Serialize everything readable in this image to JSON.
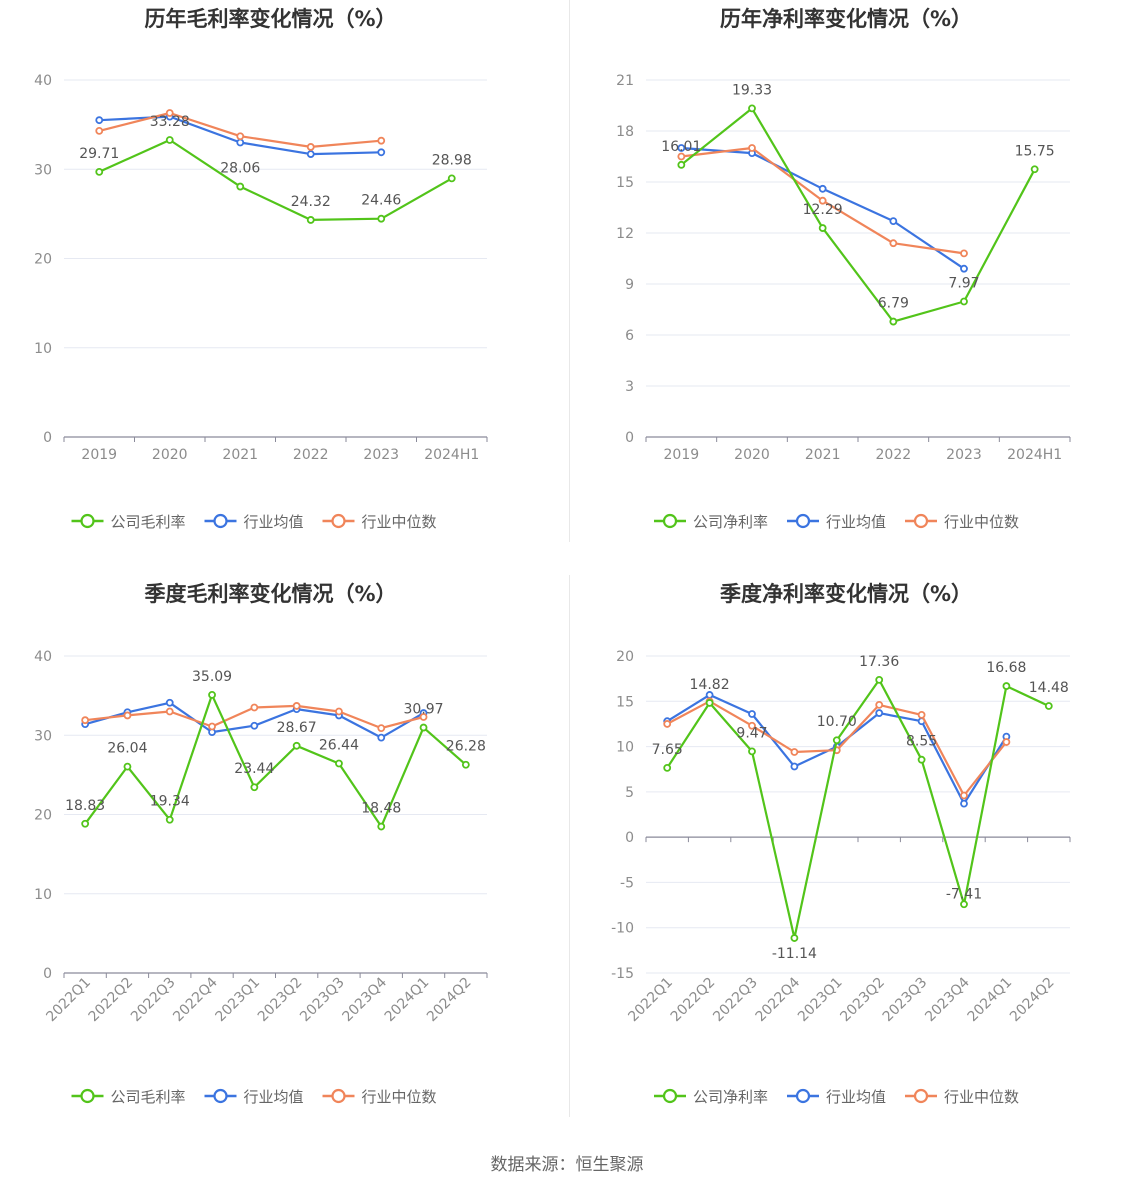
{
  "colors": {
    "company": "#52c41a",
    "industry_avg": "#3b74e0",
    "industry_median": "#f0855a",
    "grid": "#e6e9f2",
    "axis": "#8a8a9a"
  },
  "chart_data": [
    {
      "type": "line",
      "title": "历年毛利率变化情况（%）",
      "categories": [
        "2019",
        "2020",
        "2021",
        "2022",
        "2023",
        "2024H1"
      ],
      "ylim": [
        0,
        40
      ],
      "yticks": [
        0,
        10,
        20,
        30,
        40
      ],
      "rotate_x": false,
      "series": [
        {
          "name": "公司毛利率",
          "key": "company",
          "values": [
            29.71,
            33.28,
            28.06,
            24.32,
            24.46,
            28.98
          ],
          "labels": [
            "29.71",
            "33.28",
            "28.06",
            "24.32",
            "24.46",
            "28.98"
          ]
        },
        {
          "name": "行业均值",
          "key": "industry_avg",
          "values": [
            35.5,
            35.9,
            33.0,
            31.7,
            31.9,
            null
          ]
        },
        {
          "name": "行业中位数",
          "key": "industry_median",
          "values": [
            34.3,
            36.3,
            33.7,
            32.5,
            33.2,
            null
          ]
        }
      ],
      "legend": [
        "公司毛利率",
        "行业均值",
        "行业中位数"
      ]
    },
    {
      "type": "line",
      "title": "历年净利率变化情况（%）",
      "categories": [
        "2019",
        "2020",
        "2021",
        "2022",
        "2023",
        "2024H1"
      ],
      "ylim": [
        0,
        21
      ],
      "yticks": [
        0,
        3,
        6,
        9,
        12,
        15,
        18,
        21
      ],
      "rotate_x": false,
      "series": [
        {
          "name": "公司净利率",
          "key": "company",
          "values": [
            16.01,
            19.33,
            12.29,
            6.79,
            7.97,
            15.75
          ],
          "labels": [
            "16.01",
            "19.33",
            "12.29",
            "6.79",
            "7.97",
            "15.75"
          ]
        },
        {
          "name": "行业均值",
          "key": "industry_avg",
          "values": [
            17.0,
            16.7,
            14.6,
            12.7,
            9.9,
            null
          ]
        },
        {
          "name": "行业中位数",
          "key": "industry_median",
          "values": [
            16.5,
            17.0,
            13.9,
            11.4,
            10.8,
            null
          ]
        }
      ],
      "legend": [
        "公司净利率",
        "行业均值",
        "行业中位数"
      ]
    },
    {
      "type": "line",
      "title": "季度毛利率变化情况（%）",
      "categories": [
        "2022Q1",
        "2022Q2",
        "2022Q3",
        "2022Q4",
        "2023Q1",
        "2023Q2",
        "2023Q3",
        "2023Q4",
        "2024Q1",
        "2024Q2"
      ],
      "ylim": [
        0,
        40
      ],
      "yticks": [
        0,
        10,
        20,
        30,
        40
      ],
      "rotate_x": true,
      "series": [
        {
          "name": "公司毛利率",
          "key": "company",
          "values": [
            18.83,
            26.04,
            19.34,
            35.09,
            23.44,
            28.67,
            26.44,
            18.48,
            30.97,
            26.28
          ],
          "labels": [
            "18.83",
            "26.04",
            "19.34",
            "35.09",
            "23.44",
            "28.67",
            "26.44",
            "18.48",
            "30.97",
            "26.28"
          ]
        },
        {
          "name": "行业均值",
          "key": "industry_avg",
          "values": [
            31.4,
            32.9,
            34.1,
            30.4,
            31.2,
            33.3,
            32.5,
            29.7,
            32.8,
            null
          ]
        },
        {
          "name": "行业中位数",
          "key": "industry_median",
          "values": [
            31.9,
            32.5,
            33.0,
            31.1,
            33.5,
            33.7,
            33.0,
            30.9,
            32.3,
            null
          ]
        }
      ],
      "legend": [
        "公司毛利率",
        "行业均值",
        "行业中位数"
      ]
    },
    {
      "type": "line",
      "title": "季度净利率变化情况（%）",
      "categories": [
        "2022Q1",
        "2022Q2",
        "2022Q3",
        "2022Q4",
        "2023Q1",
        "2023Q2",
        "2023Q3",
        "2023Q4",
        "2024Q1",
        "2024Q2"
      ],
      "ylim": [
        -15,
        20
      ],
      "yticks": [
        -15,
        -10,
        -5,
        0,
        5,
        10,
        15,
        20
      ],
      "rotate_x": true,
      "series": [
        {
          "name": "公司净利率",
          "key": "company",
          "values": [
            7.65,
            14.82,
            9.47,
            -11.14,
            10.7,
            17.36,
            8.55,
            -7.41,
            16.68,
            14.48
          ],
          "labels": [
            "7.65",
            "14.82",
            "9.47",
            "-11.14",
            "10.70",
            "17.36",
            "8.55",
            "-7.41",
            "16.68",
            "14.48"
          ]
        },
        {
          "name": "行业均值",
          "key": "industry_avg",
          "values": [
            12.8,
            15.7,
            13.6,
            7.8,
            10.0,
            13.7,
            12.8,
            3.7,
            11.1,
            null
          ]
        },
        {
          "name": "行业中位数",
          "key": "industry_median",
          "values": [
            12.5,
            15.0,
            12.3,
            9.4,
            9.6,
            14.6,
            13.5,
            4.6,
            10.5,
            null
          ]
        }
      ],
      "legend": [
        "公司净利率",
        "行业均值",
        "行业中位数"
      ]
    }
  ],
  "footer": {
    "source": "数据来源：恒生聚源"
  }
}
